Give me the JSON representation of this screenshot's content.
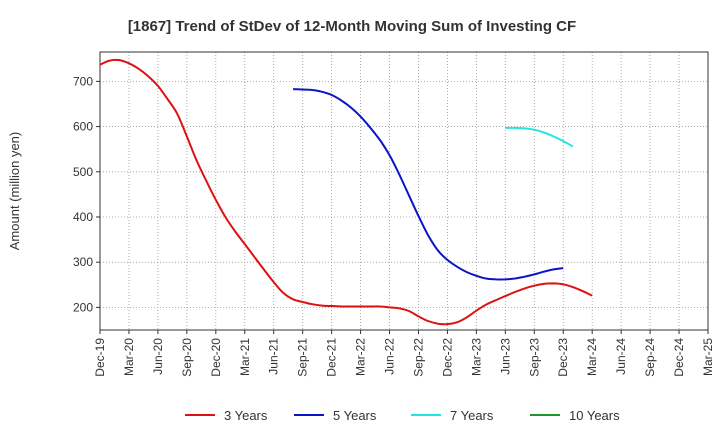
{
  "chart_data": {
    "type": "line",
    "title": "[1867]  Trend of StDev of 12-Month Moving Sum of Investing CF",
    "xlabel": "",
    "ylabel": "Amount (million yen)",
    "ylim": [
      150,
      765
    ],
    "yticks": [
      200,
      300,
      400,
      500,
      600,
      700
    ],
    "grid": true,
    "legend_position": "bottom",
    "x_categories": [
      "Dec-19",
      "Mar-20",
      "Jun-20",
      "Sep-20",
      "Dec-20",
      "Mar-21",
      "Jun-21",
      "Sep-21",
      "Dec-21",
      "Mar-22",
      "Jun-22",
      "Sep-22",
      "Dec-22",
      "Mar-23",
      "Jun-23",
      "Sep-23",
      "Dec-23",
      "Mar-24",
      "Jun-24",
      "Sep-24",
      "Dec-24",
      "Mar-25"
    ],
    "series": [
      {
        "name": "3 Years",
        "color": "#dd1111",
        "points": [
          [
            0,
            737
          ],
          [
            0.33,
            746
          ],
          [
            0.67,
            747
          ],
          [
            1,
            740
          ],
          [
            1.33,
            728
          ],
          [
            1.67,
            711
          ],
          [
            2,
            690
          ],
          [
            2.33,
            661
          ],
          [
            2.67,
            628
          ],
          [
            3,
            578
          ],
          [
            3.33,
            526
          ],
          [
            3.67,
            480
          ],
          [
            4,
            438
          ],
          [
            4.33,
            400
          ],
          [
            4.67,
            368
          ],
          [
            5,
            340
          ],
          [
            5.33,
            312
          ],
          [
            5.67,
            283
          ],
          [
            6,
            256
          ],
          [
            6.33,
            232
          ],
          [
            6.67,
            218
          ],
          [
            7,
            212
          ],
          [
            7.33,
            207
          ],
          [
            7.67,
            204
          ],
          [
            8,
            203
          ],
          [
            8.33,
            202
          ],
          [
            8.67,
            202
          ],
          [
            9,
            202
          ],
          [
            9.33,
            202
          ],
          [
            9.67,
            202
          ],
          [
            10,
            200
          ],
          [
            10.33,
            198
          ],
          [
            10.67,
            192
          ],
          [
            11,
            180
          ],
          [
            11.33,
            170
          ],
          [
            11.67,
            164
          ],
          [
            12,
            163
          ],
          [
            12.33,
            167
          ],
          [
            12.67,
            178
          ],
          [
            13,
            193
          ],
          [
            13.33,
            206
          ],
          [
            13.67,
            216
          ],
          [
            14,
            225
          ],
          [
            14.33,
            234
          ],
          [
            14.67,
            242
          ],
          [
            15,
            248
          ],
          [
            15.33,
            252
          ],
          [
            15.67,
            253
          ],
          [
            16,
            251
          ],
          [
            16.33,
            245
          ],
          [
            16.67,
            236
          ],
          [
            17,
            226
          ]
        ]
      },
      {
        "name": "5 Years",
        "color": "#0a14c8",
        "points": [
          [
            6.67,
            683
          ],
          [
            7,
            682
          ],
          [
            7.33,
            681
          ],
          [
            7.67,
            677
          ],
          [
            8,
            670
          ],
          [
            8.33,
            658
          ],
          [
            8.67,
            642
          ],
          [
            9,
            622
          ],
          [
            9.33,
            598
          ],
          [
            9.67,
            570
          ],
          [
            10,
            537
          ],
          [
            10.33,
            495
          ],
          [
            10.67,
            448
          ],
          [
            11,
            402
          ],
          [
            11.33,
            360
          ],
          [
            11.67,
            326
          ],
          [
            12,
            305
          ],
          [
            12.33,
            290
          ],
          [
            12.67,
            278
          ],
          [
            13,
            270
          ],
          [
            13.33,
            264
          ],
          [
            13.67,
            262
          ],
          [
            14,
            262
          ],
          [
            14.33,
            264
          ],
          [
            14.67,
            268
          ],
          [
            15,
            273
          ],
          [
            15.33,
            279
          ],
          [
            15.67,
            284
          ],
          [
            16,
            287
          ]
        ]
      },
      {
        "name": "7 Years",
        "color": "#22e5e5",
        "points": [
          [
            14,
            597
          ],
          [
            14.33,
            597
          ],
          [
            14.67,
            596
          ],
          [
            15,
            593
          ],
          [
            15.33,
            587
          ],
          [
            15.67,
            578
          ],
          [
            16,
            568
          ],
          [
            16.33,
            556
          ]
        ]
      },
      {
        "name": "10 Years",
        "color": "#22952a",
        "points": []
      }
    ]
  }
}
